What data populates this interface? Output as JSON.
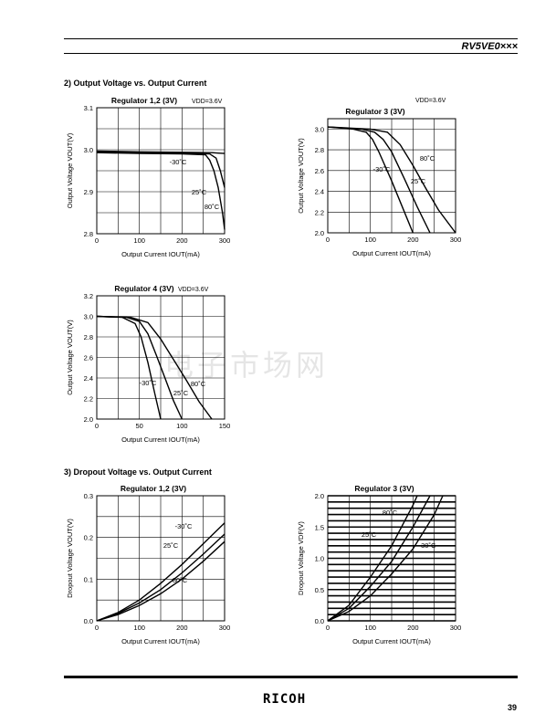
{
  "header": {
    "part_no": "RV5VE0×××"
  },
  "sections": {
    "output_voltage": "2) Output Voltage vs. Output Current",
    "dropout_voltage": "3) Dropout Voltage vs. Output Current"
  },
  "watermark": "电子市场网",
  "footer": {
    "logo": "RICOH",
    "page": "39"
  },
  "chart_data": [
    {
      "id": "c1",
      "type": "line",
      "title": "Regulator 1,2 (3V)",
      "note": "VDD=3.6V",
      "xlabel": "Output Current IOUT(mA)",
      "ylabel": "Output Voltage VOUT(V)",
      "xlim": [
        0,
        300
      ],
      "ylim": [
        2.8,
        3.1
      ],
      "xticks": [
        0,
        100,
        200,
        300
      ],
      "yticks": [
        "2.8",
        "2.9",
        "3.0",
        "3.1"
      ],
      "xgrid": [
        0,
        50,
        100,
        150,
        200,
        250,
        300
      ],
      "ygrid": [
        2.8,
        2.85,
        2.9,
        2.95,
        3.0,
        3.05,
        3.1
      ],
      "series": [
        {
          "name": "-30˚C",
          "x": [
            0,
            100,
            200,
            270,
            285,
            300
          ],
          "y": [
            2.997,
            2.995,
            2.994,
            2.993,
            2.992,
            2.991
          ]
        },
        {
          "name": "25˚C",
          "x": [
            0,
            100,
            200,
            265,
            280,
            290,
            300
          ],
          "y": [
            2.995,
            2.993,
            2.992,
            2.99,
            2.98,
            2.95,
            2.91
          ]
        },
        {
          "name": "80˚C",
          "x": [
            0,
            100,
            200,
            255,
            265,
            275,
            285,
            295,
            300
          ],
          "y": [
            2.993,
            2.991,
            2.99,
            2.988,
            2.975,
            2.95,
            2.91,
            2.85,
            2.81
          ]
        }
      ]
    },
    {
      "id": "c2",
      "type": "line",
      "title": "Regulator 3 (3V)",
      "note": "VDD=3.6V",
      "xlabel": "Output Current IOUT(mA)",
      "ylabel": "Output Voltage VOUT(V)",
      "xlim": [
        0,
        300
      ],
      "ylim": [
        2.0,
        3.1
      ],
      "xticks": [
        0,
        100,
        200,
        300
      ],
      "yticks": [
        "2.0",
        "2.2",
        "2.4",
        "2.6",
        "2.8",
        "3.0"
      ],
      "xgrid": [
        0,
        50,
        100,
        150,
        200,
        250,
        300
      ],
      "ygrid": [
        2.0,
        2.2,
        2.4,
        2.6,
        2.8,
        3.0
      ],
      "series": [
        {
          "name": "80˚C",
          "x": [
            0,
            60,
            90,
            105,
            120,
            150,
            180,
            200
          ],
          "y": [
            3.02,
            3.0,
            2.97,
            2.9,
            2.78,
            2.5,
            2.2,
            2.0
          ]
        },
        {
          "name": "25˚C",
          "x": [
            0,
            80,
            110,
            130,
            150,
            180,
            210,
            240
          ],
          "y": [
            3.02,
            3.0,
            2.97,
            2.9,
            2.78,
            2.52,
            2.25,
            2.0
          ]
        },
        {
          "name": "-30˚C",
          "x": [
            0,
            100,
            140,
            170,
            200,
            230,
            260,
            300
          ],
          "y": [
            3.02,
            3.0,
            2.97,
            2.85,
            2.65,
            2.43,
            2.22,
            2.0
          ]
        }
      ]
    },
    {
      "id": "c3",
      "type": "line",
      "title": "Regulator 4 (3V)",
      "note": "VDD=3.6V",
      "xlabel": "Output Current IOUT(mA)",
      "ylabel": "Output Voltage VOUT(V)",
      "xlim": [
        0,
        150
      ],
      "ylim": [
        2.0,
        3.2
      ],
      "xticks": [
        0,
        50,
        100,
        150
      ],
      "yticks": [
        "2.0",
        "2.2",
        "2.4",
        "2.6",
        "2.8",
        "3.0",
        "3.2"
      ],
      "xgrid": [
        0,
        25,
        50,
        75,
        100,
        125,
        150
      ],
      "ygrid": [
        2.0,
        2.2,
        2.4,
        2.6,
        2.8,
        3.0,
        3.2
      ],
      "series": [
        {
          "name": "80˚C",
          "x": [
            0,
            30,
            45,
            52,
            60,
            68,
            75
          ],
          "y": [
            3.0,
            2.99,
            2.93,
            2.8,
            2.55,
            2.25,
            2.0
          ]
        },
        {
          "name": "25˚C",
          "x": [
            0,
            35,
            50,
            60,
            70,
            80,
            90,
            100
          ],
          "y": [
            3.0,
            2.99,
            2.95,
            2.83,
            2.62,
            2.4,
            2.18,
            2.0
          ]
        },
        {
          "name": "-30˚C",
          "x": [
            0,
            40,
            60,
            75,
            90,
            105,
            120,
            135
          ],
          "y": [
            3.0,
            2.99,
            2.94,
            2.78,
            2.58,
            2.38,
            2.17,
            2.0
          ]
        }
      ]
    },
    {
      "id": "c4",
      "type": "line",
      "title": "Regulator 1,2 (3V)",
      "xlabel": "Output Current IOUT(mA)",
      "ylabel": "Dropout Voltage VOUT(V)",
      "xlim": [
        0,
        300
      ],
      "ylim": [
        0,
        0.3
      ],
      "xticks": [
        0,
        100,
        200,
        300
      ],
      "yticks": [
        "0.0",
        "0.1",
        "0.2",
        "0.3"
      ],
      "xgrid": [
        0,
        50,
        100,
        150,
        200,
        250,
        300
      ],
      "ygrid": [
        0,
        0.05,
        0.1,
        0.15,
        0.2,
        0.25,
        0.3
      ],
      "series": [
        {
          "name": "80˚C",
          "x": [
            0,
            50,
            100,
            150,
            200,
            250,
            300
          ],
          "y": [
            0,
            0.02,
            0.05,
            0.09,
            0.135,
            0.185,
            0.235
          ]
        },
        {
          "name": "25˚C",
          "x": [
            0,
            50,
            100,
            150,
            200,
            250,
            300
          ],
          "y": [
            0,
            0.018,
            0.043,
            0.075,
            0.115,
            0.16,
            0.208
          ]
        },
        {
          "name": "-30˚C",
          "x": [
            0,
            50,
            100,
            150,
            200,
            250,
            300
          ],
          "y": [
            0,
            0.015,
            0.037,
            0.065,
            0.1,
            0.143,
            0.19
          ]
        }
      ]
    },
    {
      "id": "c5",
      "type": "line",
      "title": "Regulator 3 (3V)",
      "xlabel": "Output Current IOUT(mA)",
      "ylabel": "Dropout Voltage VDF(V)",
      "xlim": [
        0,
        300
      ],
      "ylim": [
        0,
        2.0
      ],
      "xticks": [
        0,
        100,
        200,
        300
      ],
      "yticks": [
        "0.0",
        "0.5",
        "1.0",
        "1.5",
        "2.0"
      ],
      "xgrid": [
        0,
        50,
        100,
        150,
        200,
        250,
        300
      ],
      "ygrid": [
        0,
        0.1,
        0.2,
        0.3,
        0.4,
        0.5,
        0.6,
        0.7,
        0.8,
        0.9,
        1.0,
        1.1,
        1.2,
        1.3,
        1.4,
        1.5,
        1.6,
        1.7,
        1.8,
        1.9,
        2.0
      ],
      "series": [
        {
          "name": "80˚C",
          "x": [
            0,
            50,
            100,
            150,
            200,
            210
          ],
          "y": [
            0,
            0.25,
            0.7,
            1.2,
            1.85,
            2.0
          ]
        },
        {
          "name": "25˚C",
          "x": [
            0,
            50,
            100,
            150,
            200,
            240
          ],
          "y": [
            0,
            0.2,
            0.55,
            0.95,
            1.5,
            2.0
          ]
        },
        {
          "name": "-30˚C",
          "x": [
            0,
            50,
            100,
            150,
            200,
            250,
            270
          ],
          "y": [
            0,
            0.15,
            0.4,
            0.75,
            1.15,
            1.7,
            2.0
          ]
        }
      ]
    }
  ]
}
